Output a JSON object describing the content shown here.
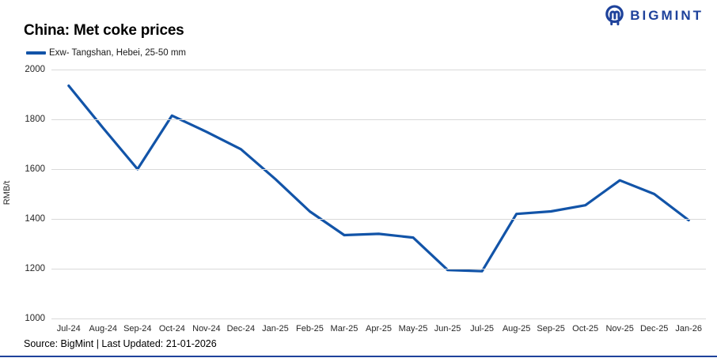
{
  "header": {
    "title": "China: Met coke prices",
    "logo_text": "BIGMINT"
  },
  "legend": {
    "label": "Exw- Tangshan, Hebei, 25-50 mm"
  },
  "footer": {
    "source": "Source: BigMint | Last Updated: 21-01-2026"
  },
  "colors": {
    "line": "#1254a8",
    "logo": "#1e429b",
    "grid": "#d9d9d9"
  },
  "chart_data": {
    "type": "line",
    "title": "China: Met coke prices",
    "xlabel": "",
    "ylabel": "RMB/t",
    "ylim": [
      1000,
      2000
    ],
    "y_ticks": [
      2000,
      1800,
      1600,
      1400,
      1200,
      1000
    ],
    "grid": "horizontal",
    "legend_position": "top-left",
    "categories": [
      "Jul-24",
      "Aug-24",
      "Sep-24",
      "Oct-24",
      "Nov-24",
      "Dec-24",
      "Jan-25",
      "Feb-25",
      "Mar-25",
      "Apr-25",
      "May-25",
      "Jun-25",
      "Jul-25",
      "Aug-25",
      "Sep-25",
      "Oct-25",
      "Nov-25",
      "Dec-25",
      "Jan-26"
    ],
    "series": [
      {
        "name": "Exw- Tangshan, Hebei, 25-50 mm",
        "color": "#1254a8",
        "values": [
          1935,
          1765,
          1600,
          1815,
          1750,
          1680,
          1560,
          1430,
          1335,
          1340,
          1325,
          1195,
          1190,
          1420,
          1430,
          1455,
          1555,
          1500,
          1395
        ]
      }
    ]
  }
}
